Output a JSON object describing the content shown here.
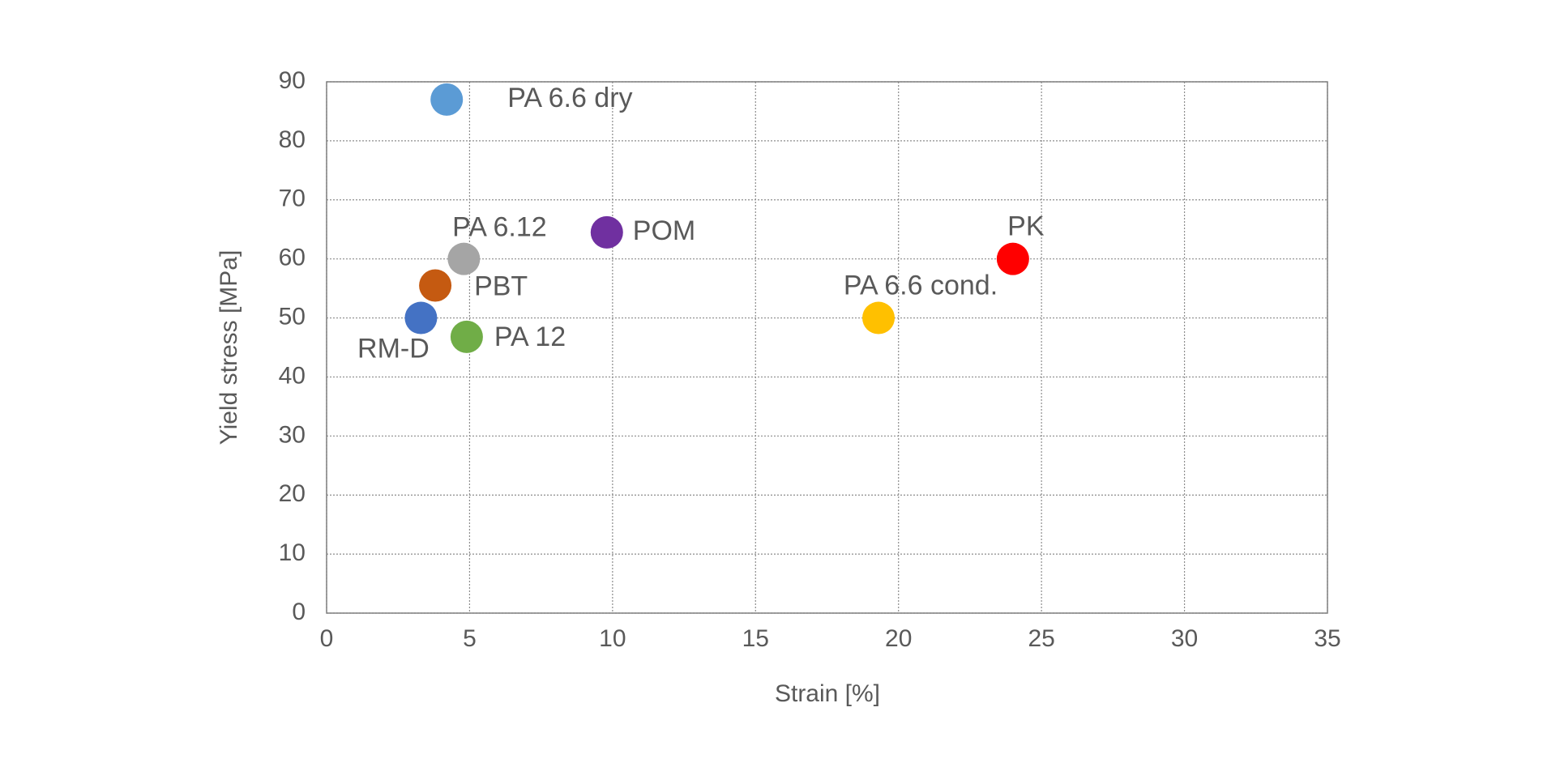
{
  "chart_data": {
    "type": "scatter",
    "x_label": "Strain [%]",
    "y_label": "Yield stress [MPa]",
    "xlim": [
      0,
      35
    ],
    "xticks": [
      0,
      5,
      10,
      15,
      20,
      25,
      30,
      35
    ],
    "ylim": [
      0,
      90
    ],
    "yticks": [
      0,
      10,
      20,
      30,
      40,
      50,
      60,
      70,
      80,
      90
    ],
    "grid": true,
    "series": [
      {
        "name": "PA 6.6 dry",
        "color": "#5b9bd5",
        "x": [
          4.2
        ],
        "values": [
          87
        ]
      },
      {
        "name": "PA 6.12",
        "color": "#a5a5a5",
        "x": [
          4.8
        ],
        "values": [
          60
        ]
      },
      {
        "name": "POM",
        "color": "#7030a0",
        "x": [
          9.8
        ],
        "values": [
          64.5
        ]
      },
      {
        "name": "PBT",
        "color": "#c55a11",
        "x": [
          3.8
        ],
        "values": [
          55.5
        ]
      },
      {
        "name": "RM-D",
        "color": "#4472c4",
        "x": [
          3.3
        ],
        "values": [
          50
        ]
      },
      {
        "name": "PA 12",
        "color": "#70ad47",
        "x": [
          4.9
        ],
        "values": [
          46.8
        ]
      },
      {
        "name": "PA 6.6 cond.",
        "color": "#ffc000",
        "x": [
          19.3
        ],
        "values": [
          50
        ]
      },
      {
        "name": "PK",
        "color": "#ff0000",
        "x": [
          24
        ],
        "values": [
          60
        ]
      }
    ]
  }
}
